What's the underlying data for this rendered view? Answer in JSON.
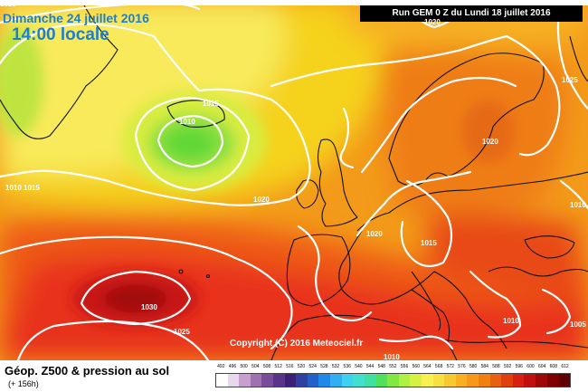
{
  "header": {
    "date": "Dimanche 24 juillet 2016",
    "time": "14:00 locale",
    "run": "Run GEM 0 Z du Lundi 18 juillet 2016"
  },
  "copyright": "Copyright (C) 2016 Meteociel.fr",
  "isobars": {
    "l1010_iceland": "1010",
    "l1015_iceland": "1015",
    "l1020_atlantic": "1020",
    "l1020_baltic": "1020",
    "l1020_france": "1020",
    "l1015_germany": "1015",
    "l1010_west": "1010",
    "l1015_west": "1015",
    "l1030_azores": "1030",
    "l1025_south": "1025",
    "l1010_med": "1010",
    "l1010_bottom": "1010",
    "l1025_ne": "1025",
    "l1010_east": "1010",
    "l1005_se": "1005",
    "l1020_top": "1020",
    "l1020_topleft": "1020"
  },
  "footer": {
    "title": "Géop. Z500 & pression au sol",
    "subtitle": "(+ 156h)"
  },
  "scale": {
    "labels": [
      "492",
      "496",
      "500",
      "504",
      "508",
      "512",
      "516",
      "520",
      "524",
      "528",
      "532",
      "536",
      "540",
      "544",
      "548",
      "552",
      "556",
      "560",
      "564",
      "568",
      "572",
      "576",
      "580",
      "584",
      "588",
      "592",
      "596",
      "600",
      "604",
      "608",
      "612"
    ],
    "colors": [
      "#ffffff",
      "#e8d8ec",
      "#c8a0d0",
      "#a070b0",
      "#7a4c9c",
      "#5a3488",
      "#3c2078",
      "#3040a0",
      "#2060c8",
      "#2088e8",
      "#30b0f0",
      "#40d0f0",
      "#40e0d0",
      "#40e0a0",
      "#50e060",
      "#80e840",
      "#b0f040",
      "#d8f040",
      "#f8f050",
      "#f8e040",
      "#f8c830",
      "#f8b020",
      "#f89818",
      "#f08010",
      "#e86010",
      "#e04010",
      "#d82010",
      "#c01010",
      "#a00808",
      "#800000",
      "#600000"
    ]
  }
}
